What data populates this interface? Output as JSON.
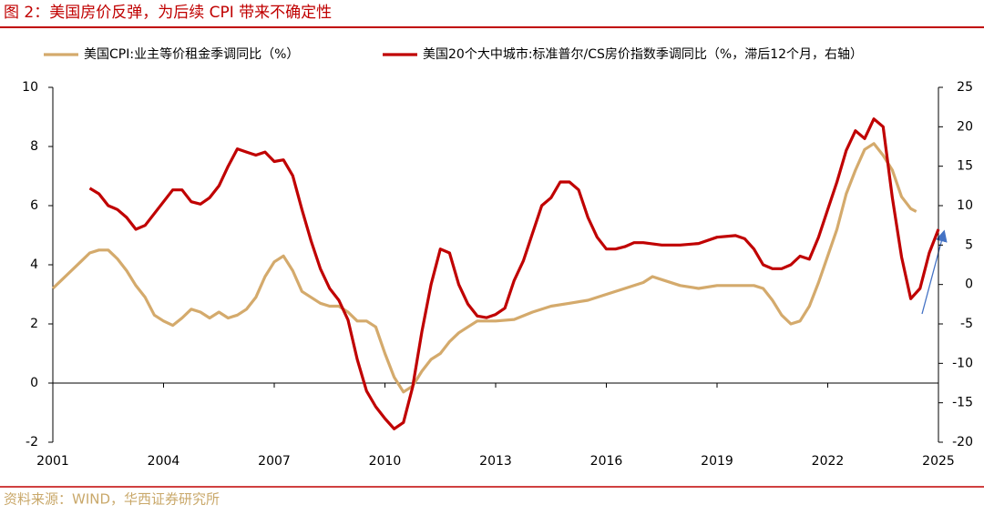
{
  "chart_data": {
    "type": "line",
    "title": "图 2：美国房价反弹，为后续 CPI 带来不确定性",
    "source": "资料来源：WIND，华西证券研究所",
    "xlim": [
      2001,
      2025
    ],
    "xticks": [
      2001,
      2004,
      2007,
      2010,
      2013,
      2016,
      2019,
      2022,
      2025
    ],
    "ylim": [
      -2,
      10
    ],
    "yticks": [
      -2,
      0,
      2,
      4,
      6,
      8,
      10
    ],
    "y2lim": [
      -20,
      25
    ],
    "y2ticks": [
      -20,
      -15,
      -10,
      -5,
      0,
      5,
      10,
      15,
      20,
      25
    ],
    "legend": "top",
    "series": [
      {
        "name": "美国CPI:业主等价租金季调同比（%）",
        "color": "#d4aa6c",
        "x": [
          2001.0,
          2001.25,
          2001.5,
          2001.75,
          2002.0,
          2002.25,
          2002.5,
          2002.75,
          2003.0,
          2003.25,
          2003.5,
          2003.75,
          2004.0,
          2004.25,
          2004.5,
          2004.75,
          2005.0,
          2005.25,
          2005.5,
          2005.75,
          2006.0,
          2006.25,
          2006.5,
          2006.75,
          2007.0,
          2007.25,
          2007.5,
          2007.75,
          2008.0,
          2008.25,
          2008.5,
          2008.75,
          2009.0,
          2009.25,
          2009.5,
          2009.75,
          2010.0,
          2010.25,
          2010.5,
          2010.75,
          2011.0,
          2011.25,
          2011.5,
          2011.75,
          2012.0,
          2012.25,
          2012.5,
          2012.75,
          2013.0,
          2013.5,
          2014.0,
          2014.5,
          2015.0,
          2015.5,
          2016.0,
          2016.5,
          2017.0,
          2017.25,
          2017.5,
          2018.0,
          2018.5,
          2019.0,
          2019.5,
          2020.0,
          2020.25,
          2020.5,
          2020.75,
          2021.0,
          2021.25,
          2021.5,
          2021.75,
          2022.0,
          2022.25,
          2022.5,
          2022.75,
          2023.0,
          2023.25,
          2023.5,
          2023.75,
          2024.0,
          2024.25,
          2024.4
        ],
        "values": [
          3.2,
          3.5,
          3.8,
          4.1,
          4.4,
          4.5,
          4.5,
          4.2,
          3.8,
          3.3,
          2.9,
          2.3,
          2.1,
          1.95,
          2.2,
          2.5,
          2.4,
          2.2,
          2.4,
          2.2,
          2.3,
          2.5,
          2.9,
          3.6,
          4.1,
          4.3,
          3.8,
          3.1,
          2.9,
          2.7,
          2.6,
          2.6,
          2.4,
          2.1,
          2.1,
          1.9,
          1.0,
          0.2,
          -0.3,
          -0.1,
          0.4,
          0.8,
          1.0,
          1.4,
          1.7,
          1.9,
          2.1,
          2.1,
          2.1,
          2.15,
          2.4,
          2.6,
          2.7,
          2.8,
          3.0,
          3.2,
          3.4,
          3.6,
          3.5,
          3.3,
          3.2,
          3.3,
          3.3,
          3.3,
          3.2,
          2.8,
          2.3,
          2.0,
          2.1,
          2.6,
          3.4,
          4.3,
          5.2,
          6.4,
          7.2,
          7.9,
          8.1,
          7.7,
          7.2,
          6.3,
          5.9,
          5.8
        ]
      },
      {
        "name": "美国20个大中城市:标准普尔/CS房价指数季调同比（%，滞后12个月，右轴）",
        "color": "#c00000",
        "axis": "y2",
        "x": [
          2002.0,
          2002.25,
          2002.5,
          2002.75,
          2003.0,
          2003.25,
          2003.5,
          2003.75,
          2004.0,
          2004.25,
          2004.5,
          2004.75,
          2005.0,
          2005.25,
          2005.5,
          2005.75,
          2006.0,
          2006.25,
          2006.5,
          2006.75,
          2007.0,
          2007.25,
          2007.5,
          2007.75,
          2008.0,
          2008.25,
          2008.5,
          2008.75,
          2009.0,
          2009.25,
          2009.5,
          2009.75,
          2010.0,
          2010.25,
          2010.5,
          2010.75,
          2011.0,
          2011.25,
          2011.5,
          2011.75,
          2012.0,
          2012.25,
          2012.5,
          2012.75,
          2013.0,
          2013.25,
          2013.5,
          2013.75,
          2014.0,
          2014.25,
          2014.5,
          2014.75,
          2015.0,
          2015.25,
          2015.5,
          2015.75,
          2016.0,
          2016.25,
          2016.5,
          2016.75,
          2017.0,
          2017.5,
          2018.0,
          2018.5,
          2019.0,
          2019.5,
          2019.75,
          2020.0,
          2020.25,
          2020.5,
          2020.75,
          2021.0,
          2021.25,
          2021.5,
          2021.75,
          2022.0,
          2022.25,
          2022.5,
          2022.75,
          2023.0,
          2023.25,
          2023.5,
          2023.75,
          2024.0,
          2024.25,
          2024.5,
          2024.75,
          2025.0
        ],
        "values": [
          12.2,
          11.5,
          10.0,
          9.5,
          8.5,
          7.0,
          7.5,
          9.0,
          10.5,
          12.0,
          12.0,
          10.5,
          10.2,
          11.0,
          12.5,
          15.0,
          17.2,
          16.8,
          16.4,
          16.8,
          15.6,
          15.8,
          13.8,
          9.5,
          5.5,
          2.0,
          -0.5,
          -2.0,
          -4.5,
          -9.5,
          -13.5,
          -15.5,
          -17.0,
          -18.3,
          -17.5,
          -13.0,
          -6.0,
          0.0,
          4.5,
          4.0,
          0.0,
          -2.5,
          -4.0,
          -4.2,
          -3.8,
          -3.0,
          0.5,
          3.0,
          6.5,
          10.0,
          11.0,
          13.0,
          13.0,
          12.0,
          8.5,
          6.0,
          4.5,
          4.5,
          4.8,
          5.3,
          5.3,
          5.0,
          5.0,
          5.2,
          6.0,
          6.2,
          5.8,
          4.5,
          2.5,
          2.0,
          2.0,
          2.5,
          3.6,
          3.2,
          6.0,
          9.5,
          13.0,
          17.0,
          19.5,
          18.5,
          21.0,
          20.0,
          11.0,
          3.5,
          -1.8,
          -0.5,
          4.0,
          7.0
        ]
      }
    ]
  }
}
